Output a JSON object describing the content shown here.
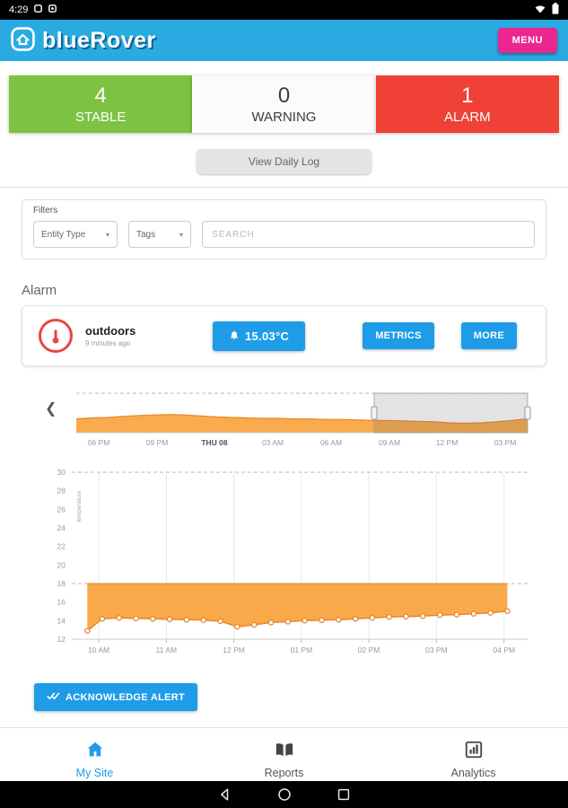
{
  "status_bar": {
    "time": "4:29",
    "icons": [
      "notification-icon",
      "notification-icon",
      "wifi-icon",
      "battery-icon"
    ]
  },
  "app_bar": {
    "title": "blueRover",
    "menu_label": "MENU"
  },
  "summary_cards": [
    {
      "count": "4",
      "label": "STABLE",
      "color": "#7DC242"
    },
    {
      "count": "0",
      "label": "WARNING",
      "color": "#FBFBFB"
    },
    {
      "count": "1",
      "label": "ALARM",
      "color": "#EF4136"
    }
  ],
  "daily_log_label": "View Daily Log",
  "filters": {
    "title": "Filters",
    "entity_type_label": "Entity Type",
    "tags_label": "Tags",
    "search_placeholder": "SEARCH"
  },
  "alarm": {
    "heading": "Alarm",
    "device_name": "outdoors",
    "time_ago": "9 minutes ago",
    "temperature_label": "15.03°C",
    "metrics_label": "METRICS",
    "more_label": "MORE"
  },
  "acknowledge_label": "ACKNOWLEDGE ALERT",
  "bottom_nav": {
    "items": [
      {
        "label": "My Site",
        "icon": "home-icon",
        "active": true
      },
      {
        "label": "Reports",
        "icon": "reports-icon",
        "active": false
      },
      {
        "label": "Analytics",
        "icon": "analytics-icon",
        "active": false
      }
    ]
  },
  "colors": {
    "brand_blue": "#29ABE2",
    "accent_blue": "#1E9CE8",
    "menu_pink": "#EC268F",
    "stable_green": "#7DC242",
    "alarm_red": "#EF4136",
    "chart_orange": "#F9A43F"
  },
  "chart_data": [
    {
      "type": "area",
      "role": "range-navigator",
      "x_labels": [
        "06 PM",
        "09 PM",
        "THU 08",
        "03 AM",
        "06 AM",
        "09 AM",
        "12 PM",
        "03 PM"
      ],
      "values": [
        14.8,
        15.0,
        15.1,
        15.3,
        15.5,
        15.6,
        15.7,
        15.6,
        15.4,
        15.2,
        15.1,
        15.0,
        14.9,
        14.9,
        14.8,
        14.8,
        14.7,
        14.7,
        14.6,
        14.5,
        14.5,
        14.4,
        14.3,
        14.2,
        14.0,
        13.9,
        14.0,
        14.2,
        14.5,
        14.8
      ],
      "ylim": [
        12,
        20
      ],
      "selection": {
        "start_fraction": 0.66,
        "end_fraction": 1.0
      },
      "fill_color": "#F9A43F",
      "line_color": "#E8862C",
      "grid": "off",
      "legend": "none"
    },
    {
      "type": "area",
      "name": "temperature",
      "title": "",
      "xlabel": "",
      "ylabel": "temperature",
      "ylim": [
        12,
        30
      ],
      "y_ticks": [
        12,
        14,
        16,
        18,
        20,
        22,
        24,
        26,
        28,
        30
      ],
      "threshold": 18,
      "xlim": [
        9.6,
        16.35
      ],
      "x_ticks": [
        10,
        11,
        12,
        13,
        14,
        15,
        16
      ],
      "x_labels": [
        "10 AM",
        "11 AM",
        "12 PM",
        "01 PM",
        "02 PM",
        "03 PM",
        "04 PM"
      ],
      "series": [
        {
          "name": "temperature",
          "x": [
            9.83,
            10.05,
            10.3,
            10.55,
            10.8,
            11.05,
            11.3,
            11.55,
            11.8,
            12.05,
            12.3,
            12.55,
            12.8,
            13.05,
            13.3,
            13.55,
            13.8,
            14.05,
            14.3,
            14.55,
            14.8,
            15.05,
            15.3,
            15.55,
            15.8,
            16.05
          ],
          "y": [
            12.9,
            14.2,
            14.3,
            14.25,
            14.2,
            14.15,
            14.1,
            14.05,
            13.95,
            13.35,
            13.55,
            13.8,
            13.9,
            14.0,
            14.05,
            14.1,
            14.2,
            14.3,
            14.4,
            14.45,
            14.5,
            14.6,
            14.65,
            14.75,
            14.85,
            15.03
          ]
        }
      ],
      "fill_color": "#F9A43F",
      "line_color": "#E8862C",
      "grid": "vertical",
      "legend": "none"
    }
  ]
}
